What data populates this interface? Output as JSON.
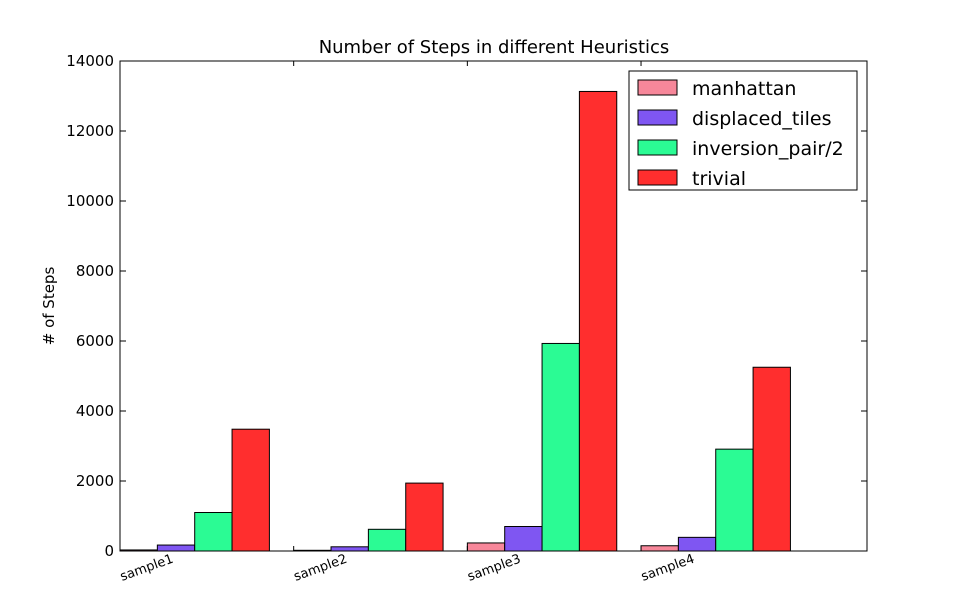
{
  "chart_data": {
    "type": "bar",
    "title": "Number of Steps in different Heuristics",
    "xlabel": "",
    "ylabel": "# of Steps",
    "ylim": [
      0,
      14000
    ],
    "yticks": [
      0,
      2000,
      4000,
      6000,
      8000,
      10000,
      12000,
      14000
    ],
    "categories": [
      "sample1",
      "sample2",
      "sample3",
      "sample4"
    ],
    "series": [
      {
        "name": "manhattan",
        "color": "#f7879a",
        "values": [
          30,
          20,
          230,
          150
        ]
      },
      {
        "name": "displaced_tiles",
        "color": "#7f56f2",
        "values": [
          170,
          120,
          700,
          390
        ]
      },
      {
        "name": "inversion_pair/2",
        "color": "#2bfb94",
        "values": [
          1100,
          620,
          5930,
          2910
        ]
      },
      {
        "name": "trivial",
        "color": "#ff2e2e",
        "values": [
          3480,
          1940,
          13130,
          5250
        ]
      }
    ],
    "legend_position": "top-right",
    "grid": false
  }
}
